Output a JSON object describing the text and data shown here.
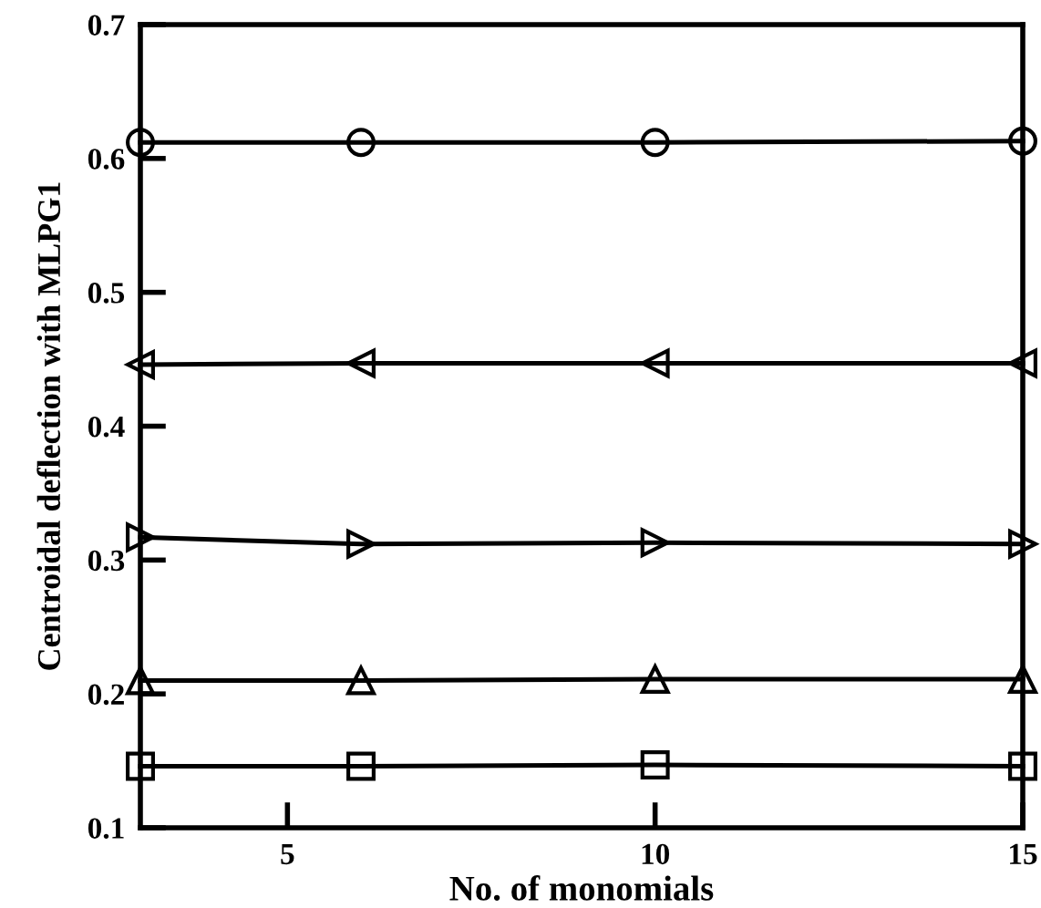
{
  "chart_data": {
    "type": "line",
    "xlabel": "No. of monomials",
    "ylabel": "Centroidal deflection with MLPG1",
    "x": [
      3,
      6,
      10,
      15
    ],
    "series": [
      {
        "color": "#000000",
        "marker": "circle",
        "values": [
          0.612,
          0.612,
          0.612,
          0.613
        ]
      },
      {
        "color": "#000000",
        "marker": "triangle-left",
        "values": [
          0.446,
          0.447,
          0.447,
          0.447
        ]
      },
      {
        "color": "#000000",
        "marker": "triangle-right",
        "values": [
          0.317,
          0.312,
          0.313,
          0.312
        ]
      },
      {
        "color": "#000000",
        "marker": "triangle",
        "values": [
          0.21,
          0.21,
          0.211,
          0.211
        ]
      },
      {
        "color": "#000000",
        "marker": "square",
        "values": [
          0.146,
          0.146,
          0.147,
          0.146
        ]
      }
    ],
    "xlim": [
      3,
      15
    ],
    "xticks": [
      5,
      10,
      15
    ],
    "ylim": [
      0.1,
      0.7
    ],
    "yticks": [
      0.1,
      0.2,
      0.3,
      0.4,
      0.5,
      0.6,
      0.7
    ],
    "line_style": "solid"
  }
}
